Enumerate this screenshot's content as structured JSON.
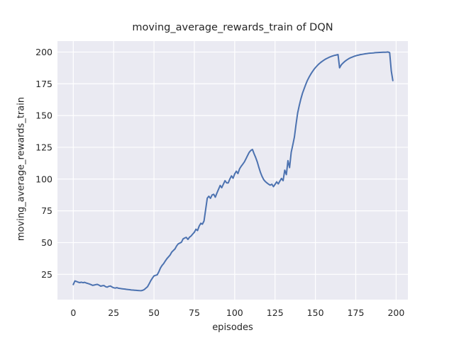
{
  "figure": {
    "background": "#ffffff",
    "axes_background": "#eaeaf2",
    "grid_color": "#ffffff",
    "text_color": "#262626",
    "line_color": "#4c72b0"
  },
  "chart_data": {
    "type": "line",
    "title": "moving_average_rewards_train of DQN",
    "xlabel": "episodes",
    "ylabel": "moving_average_rewards_train",
    "x_ticks": [
      0,
      25,
      50,
      75,
      100,
      125,
      150,
      175,
      200
    ],
    "y_ticks": [
      25,
      50,
      75,
      100,
      125,
      150,
      175,
      200
    ],
    "xlim": [
      -9.8,
      207.3
    ],
    "ylim": [
      5.1,
      208.6
    ],
    "grid": true,
    "legend_position": "none",
    "style": "seaborn-darkgrid",
    "series": [
      {
        "name": "moving_average_rewards_train",
        "color": "#4c72b0",
        "points": [
          [
            0,
            17.0
          ],
          [
            1,
            19.8
          ],
          [
            2,
            19.4
          ],
          [
            3,
            18.8
          ],
          [
            4,
            18.5
          ],
          [
            5,
            18.8
          ],
          [
            6,
            18.4
          ],
          [
            7,
            18.7
          ],
          [
            8,
            18.2
          ],
          [
            9,
            17.8
          ],
          [
            10,
            17.4
          ],
          [
            11,
            16.9
          ],
          [
            12,
            16.3
          ],
          [
            13,
            16.6
          ],
          [
            14,
            16.9
          ],
          [
            15,
            17.1
          ],
          [
            16,
            16.5
          ],
          [
            17,
            15.7
          ],
          [
            18,
            16.0
          ],
          [
            19,
            16.2
          ],
          [
            20,
            15.3
          ],
          [
            21,
            14.9
          ],
          [
            22,
            15.6
          ],
          [
            23,
            15.8
          ],
          [
            24,
            15.1
          ],
          [
            25,
            14.4
          ],
          [
            26,
            14.2
          ],
          [
            27,
            14.5
          ],
          [
            28,
            14.1
          ],
          [
            29,
            13.9
          ],
          [
            30,
            13.7
          ],
          [
            31,
            13.5
          ],
          [
            32,
            13.4
          ],
          [
            33,
            13.2
          ],
          [
            34,
            13.0
          ],
          [
            35,
            12.9
          ],
          [
            36,
            12.7
          ],
          [
            37,
            12.6
          ],
          [
            38,
            12.5
          ],
          [
            39,
            12.4
          ],
          [
            40,
            12.3
          ],
          [
            41,
            12.2
          ],
          [
            42,
            12.1
          ],
          [
            43,
            12.4
          ],
          [
            44,
            13.1
          ],
          [
            45,
            14.2
          ],
          [
            46,
            15.3
          ],
          [
            47,
            17.5
          ],
          [
            48,
            20.0
          ],
          [
            49,
            22.0
          ],
          [
            50,
            23.8
          ],
          [
            51,
            24.2
          ],
          [
            52,
            24.6
          ],
          [
            53,
            27.0
          ],
          [
            54,
            30.0
          ],
          [
            55,
            32.0
          ],
          [
            56,
            33.5
          ],
          [
            57,
            35.5
          ],
          [
            58,
            37.3
          ],
          [
            59,
            38.8
          ],
          [
            60,
            40.2
          ],
          [
            61,
            42.5
          ],
          [
            62,
            43.8
          ],
          [
            63,
            45.0
          ],
          [
            64,
            47.3
          ],
          [
            65,
            49.0
          ],
          [
            66,
            49.6
          ],
          [
            67,
            50.3
          ],
          [
            68,
            52.8
          ],
          [
            69,
            53.6
          ],
          [
            70,
            54.1
          ],
          [
            71,
            52.5
          ],
          [
            72,
            54.2
          ],
          [
            73,
            55.2
          ],
          [
            74,
            56.7
          ],
          [
            75,
            58.2
          ],
          [
            76,
            60.5
          ],
          [
            77,
            59.5
          ],
          [
            78,
            63.0
          ],
          [
            79,
            65.2
          ],
          [
            80,
            64.5
          ],
          [
            81,
            67.0
          ],
          [
            82,
            76.0
          ],
          [
            83,
            85.0
          ],
          [
            84,
            86.5
          ],
          [
            85,
            84.8
          ],
          [
            86,
            87.5
          ],
          [
            87,
            88.0
          ],
          [
            88,
            85.7
          ],
          [
            89,
            89.0
          ],
          [
            90,
            92.0
          ],
          [
            91,
            95.0
          ],
          [
            92,
            93.2
          ],
          [
            93,
            96.0
          ],
          [
            94,
            98.7
          ],
          [
            95,
            97.0
          ],
          [
            96,
            96.9
          ],
          [
            97,
            100.0
          ],
          [
            98,
            102.5
          ],
          [
            99,
            100.6
          ],
          [
            100,
            104.0
          ],
          [
            101,
            106.2
          ],
          [
            102,
            104.3
          ],
          [
            103,
            108.0
          ],
          [
            104,
            110.0
          ],
          [
            105,
            111.7
          ],
          [
            106,
            113.5
          ],
          [
            107,
            116.0
          ],
          [
            108,
            118.5
          ],
          [
            109,
            121.0
          ],
          [
            110,
            122.5
          ],
          [
            111,
            123.3
          ],
          [
            112,
            120.0
          ],
          [
            113,
            117.0
          ],
          [
            114,
            113.5
          ],
          [
            115,
            109.0
          ],
          [
            116,
            105.0
          ],
          [
            117,
            102.0
          ],
          [
            118,
            99.5
          ],
          [
            119,
            98.0
          ],
          [
            120,
            96.9
          ],
          [
            121,
            96.0
          ],
          [
            122,
            95.2
          ],
          [
            123,
            95.9
          ],
          [
            124,
            94.0
          ],
          [
            125,
            95.8
          ],
          [
            126,
            97.8
          ],
          [
            127,
            96.2
          ],
          [
            128,
            98.5
          ],
          [
            129,
            100.5
          ],
          [
            130,
            98.7
          ],
          [
            131,
            107.0
          ],
          [
            132,
            103.5
          ],
          [
            133,
            114.5
          ],
          [
            134,
            109.0
          ],
          [
            135,
            121.0
          ],
          [
            136,
            127.0
          ],
          [
            137,
            133.0
          ],
          [
            138,
            143.0
          ],
          [
            139,
            152.0
          ],
          [
            140,
            158.0
          ],
          [
            141,
            163.0
          ],
          [
            142,
            167.5
          ],
          [
            143,
            171.0
          ],
          [
            144,
            174.5
          ],
          [
            145,
            177.5
          ],
          [
            146,
            180.0
          ],
          [
            147,
            182.3
          ],
          [
            148,
            184.3
          ],
          [
            149,
            186.1
          ],
          [
            150,
            187.7
          ],
          [
            151,
            189.1
          ],
          [
            152,
            190.4
          ],
          [
            153,
            191.5
          ],
          [
            154,
            192.5
          ],
          [
            155,
            193.4
          ],
          [
            156,
            194.2
          ],
          [
            157,
            194.9
          ],
          [
            158,
            195.5
          ],
          [
            159,
            196.1
          ],
          [
            160,
            196.6
          ],
          [
            161,
            197.0
          ],
          [
            162,
            197.4
          ],
          [
            163,
            197.7
          ],
          [
            164,
            198.0
          ],
          [
            165,
            187.5
          ],
          [
            166,
            189.8
          ],
          [
            167,
            191.2
          ],
          [
            168,
            192.4
          ],
          [
            169,
            193.4
          ],
          [
            170,
            194.2
          ],
          [
            171,
            195.0
          ],
          [
            172,
            195.6
          ],
          [
            173,
            196.1
          ],
          [
            174,
            196.6
          ],
          [
            175,
            197.0
          ],
          [
            176,
            197.4
          ],
          [
            177,
            197.7
          ],
          [
            178,
            198.0
          ],
          [
            179,
            198.2
          ],
          [
            180,
            198.4
          ],
          [
            181,
            198.6
          ],
          [
            182,
            198.8
          ],
          [
            183,
            199.0
          ],
          [
            184,
            199.1
          ],
          [
            185,
            199.2
          ],
          [
            186,
            199.3
          ],
          [
            187,
            199.45
          ],
          [
            188,
            199.55
          ],
          [
            189,
            199.65
          ],
          [
            190,
            199.7
          ],
          [
            191,
            199.75
          ],
          [
            192,
            199.8
          ],
          [
            193,
            199.85
          ],
          [
            194,
            199.9
          ],
          [
            195,
            200.0
          ],
          [
            196,
            199.5
          ],
          [
            197,
            185.0
          ],
          [
            198,
            177.5
          ]
        ]
      }
    ]
  }
}
